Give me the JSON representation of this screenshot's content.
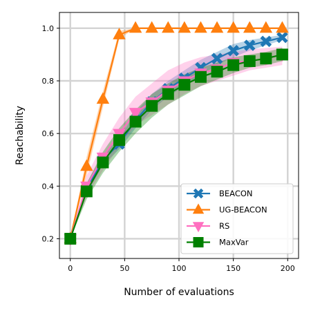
{
  "chart_data": {
    "type": "line",
    "title": "",
    "xlabel": "Number of evaluations",
    "ylabel": "Reachability",
    "xlim": [
      -10,
      210
    ],
    "ylim": [
      0.125,
      1.06
    ],
    "x_ticks": [
      0,
      50,
      100,
      150,
      200
    ],
    "y_ticks": [
      0.2,
      0.4,
      0.6,
      0.8,
      1.0
    ],
    "x_tick_labels": [
      "0",
      "50",
      "100",
      "150",
      "200"
    ],
    "y_tick_labels": [
      "0.2",
      "0.4",
      "0.6",
      "0.8",
      "1.0"
    ],
    "grid": true,
    "legend": {
      "placement": "lower-right"
    },
    "series": [
      {
        "name": "BEACON",
        "color": "#1f77b4",
        "marker": "x-filled",
        "x": [
          0,
          15,
          30,
          45,
          60,
          75,
          90,
          105,
          120,
          135,
          150,
          165,
          180,
          195
        ],
        "values": [
          0.2,
          0.39,
          0.5,
          0.56,
          0.65,
          0.72,
          0.77,
          0.81,
          0.85,
          0.885,
          0.915,
          0.935,
          0.95,
          0.965
        ],
        "lower": [
          0.2,
          0.37,
          0.48,
          0.54,
          0.62,
          0.69,
          0.74,
          0.78,
          0.82,
          0.86,
          0.89,
          0.915,
          0.935,
          0.955
        ],
        "upper": [
          0.2,
          0.41,
          0.52,
          0.58,
          0.68,
          0.75,
          0.8,
          0.84,
          0.88,
          0.91,
          0.94,
          0.955,
          0.965,
          0.975
        ]
      },
      {
        "name": "UG-BEACON",
        "color": "#ff7f0e",
        "marker": "triangle-up",
        "x": [
          0,
          15,
          30,
          45,
          60,
          75,
          90,
          105,
          120,
          135,
          150,
          165,
          180,
          195
        ],
        "values": [
          0.2,
          0.475,
          0.73,
          0.975,
          1.0,
          1.0,
          1.0,
          1.0,
          1.0,
          1.0,
          1.0,
          1.0,
          1.0,
          1.0
        ],
        "lower": [
          0.2,
          0.44,
          0.7,
          0.96,
          1.0,
          1.0,
          1.0,
          1.0,
          1.0,
          1.0,
          1.0,
          1.0,
          1.0,
          1.0
        ],
        "upper": [
          0.2,
          0.51,
          0.76,
          0.99,
          1.0,
          1.0,
          1.0,
          1.0,
          1.0,
          1.0,
          1.0,
          1.0,
          1.0,
          1.0
        ]
      },
      {
        "name": "RS",
        "color": "#ff6fc0",
        "marker": "triangle-down",
        "x": [
          0,
          15,
          30,
          45,
          60,
          75,
          90,
          105,
          120,
          135,
          150,
          165,
          180,
          195
        ],
        "values": [
          0.2,
          0.4,
          0.51,
          0.6,
          0.68,
          0.72,
          0.765,
          0.8,
          0.83,
          0.845,
          0.87,
          0.875,
          0.885,
          0.9
        ],
        "lower": [
          0.2,
          0.36,
          0.46,
          0.55,
          0.63,
          0.67,
          0.71,
          0.75,
          0.78,
          0.8,
          0.82,
          0.84,
          0.85,
          0.86
        ],
        "upper": [
          0.2,
          0.44,
          0.56,
          0.66,
          0.74,
          0.79,
          0.84,
          0.87,
          0.89,
          0.9,
          0.91,
          0.92,
          0.925,
          0.93
        ]
      },
      {
        "name": "MaxVar",
        "color": "#008000",
        "marker": "square",
        "x": [
          0,
          15,
          30,
          45,
          60,
          75,
          90,
          105,
          120,
          135,
          150,
          165,
          180,
          195
        ],
        "values": [
          0.2,
          0.38,
          0.49,
          0.575,
          0.645,
          0.705,
          0.75,
          0.785,
          0.815,
          0.835,
          0.86,
          0.875,
          0.885,
          0.9
        ],
        "lower": [
          0.2,
          0.35,
          0.45,
          0.53,
          0.6,
          0.66,
          0.71,
          0.745,
          0.78,
          0.805,
          0.83,
          0.85,
          0.86,
          0.875
        ],
        "upper": [
          0.2,
          0.41,
          0.53,
          0.62,
          0.69,
          0.75,
          0.79,
          0.825,
          0.85,
          0.87,
          0.89,
          0.9,
          0.91,
          0.925
        ]
      }
    ]
  }
}
